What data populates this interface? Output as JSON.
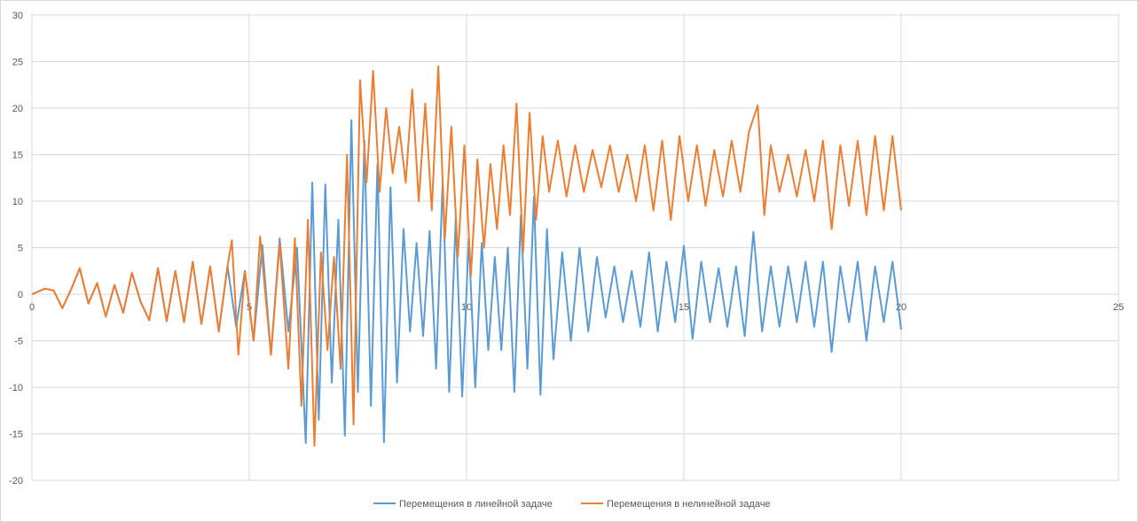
{
  "chart_data": {
    "type": "line",
    "title": "",
    "xlabel": "",
    "ylabel": "",
    "xlim": [
      0,
      25
    ],
    "ylim": [
      -20,
      30
    ],
    "x_ticks": [
      0,
      5,
      10,
      15,
      20,
      25
    ],
    "y_ticks": [
      -20,
      -15,
      -10,
      -5,
      0,
      5,
      10,
      15,
      20,
      25,
      30
    ],
    "grid": true,
    "legend_position": "bottom",
    "series": [
      {
        "name": "Перемещения в линейной задаче",
        "color": "#5b9bd5",
        "points": [
          [
            0,
            0
          ],
          [
            0.3,
            0.6
          ],
          [
            0.5,
            0.4
          ],
          [
            0.7,
            -1.5
          ],
          [
            0.9,
            0.5
          ],
          [
            1.1,
            2.8
          ],
          [
            1.3,
            -1.0
          ],
          [
            1.5,
            1.2
          ],
          [
            1.7,
            -2.4
          ],
          [
            1.9,
            1.0
          ],
          [
            2.1,
            -2.0
          ],
          [
            2.3,
            2.3
          ],
          [
            2.5,
            -0.8
          ],
          [
            2.7,
            -2.8
          ],
          [
            2.9,
            2.8
          ],
          [
            3.1,
            -2.9
          ],
          [
            3.3,
            2.5
          ],
          [
            3.5,
            -3.0
          ],
          [
            3.7,
            3.5
          ],
          [
            3.9,
            -3.2
          ],
          [
            4.1,
            3.0
          ],
          [
            4.3,
            -4.0
          ],
          [
            4.5,
            3.0
          ],
          [
            4.7,
            -3.5
          ],
          [
            4.9,
            2.5
          ],
          [
            5.1,
            -5.0
          ],
          [
            5.3,
            5.3
          ],
          [
            5.5,
            -6.5
          ],
          [
            5.7,
            6.0
          ],
          [
            5.9,
            -4.0
          ],
          [
            6.1,
            5.0
          ],
          [
            6.3,
            -16.0
          ],
          [
            6.45,
            12.0
          ],
          [
            6.6,
            -13.5
          ],
          [
            6.75,
            11.8
          ],
          [
            6.9,
            -9.5
          ],
          [
            7.05,
            8.0
          ],
          [
            7.2,
            -15.2
          ],
          [
            7.35,
            18.7
          ],
          [
            7.5,
            -10.5
          ],
          [
            7.65,
            16.5
          ],
          [
            7.8,
            -12.0
          ],
          [
            7.95,
            14.0
          ],
          [
            8.1,
            -15.9
          ],
          [
            8.25,
            11.5
          ],
          [
            8.4,
            -9.5
          ],
          [
            8.55,
            7.0
          ],
          [
            8.7,
            -4.0
          ],
          [
            8.85,
            5.5
          ],
          [
            9.0,
            -4.5
          ],
          [
            9.15,
            6.8
          ],
          [
            9.3,
            -8.0
          ],
          [
            9.45,
            12.2
          ],
          [
            9.6,
            -10.5
          ],
          [
            9.75,
            8.0
          ],
          [
            9.9,
            -11.0
          ],
          [
            10.05,
            6.0
          ],
          [
            10.2,
            -10.0
          ],
          [
            10.35,
            5.5
          ],
          [
            10.5,
            -6.0
          ],
          [
            10.65,
            4.0
          ],
          [
            10.8,
            -6.0
          ],
          [
            10.95,
            5.0
          ],
          [
            11.1,
            -10.5
          ],
          [
            11.25,
            8.5
          ],
          [
            11.4,
            -8.0
          ],
          [
            11.55,
            10.5
          ],
          [
            11.7,
            -10.8
          ],
          [
            11.85,
            7.0
          ],
          [
            12.0,
            -7.0
          ],
          [
            12.2,
            4.5
          ],
          [
            12.4,
            -5.0
          ],
          [
            12.6,
            5.0
          ],
          [
            12.8,
            -4.0
          ],
          [
            13.0,
            4.0
          ],
          [
            13.2,
            -2.5
          ],
          [
            13.4,
            3.0
          ],
          [
            13.6,
            -3.0
          ],
          [
            13.8,
            2.5
          ],
          [
            14.0,
            -3.5
          ],
          [
            14.2,
            4.5
          ],
          [
            14.4,
            -4.0
          ],
          [
            14.6,
            3.5
          ],
          [
            14.8,
            -3.0
          ],
          [
            15.0,
            5.2
          ],
          [
            15.2,
            -4.8
          ],
          [
            15.4,
            3.5
          ],
          [
            15.6,
            -3.0
          ],
          [
            15.8,
            2.8
          ],
          [
            16.0,
            -3.5
          ],
          [
            16.2,
            3.0
          ],
          [
            16.4,
            -4.5
          ],
          [
            16.6,
            6.7
          ],
          [
            16.8,
            -4.0
          ],
          [
            17.0,
            3.0
          ],
          [
            17.2,
            -3.5
          ],
          [
            17.4,
            3.0
          ],
          [
            17.6,
            -3.0
          ],
          [
            17.8,
            3.5
          ],
          [
            18.0,
            -3.5
          ],
          [
            18.2,
            3.5
          ],
          [
            18.4,
            -6.2
          ],
          [
            18.6,
            3.0
          ],
          [
            18.8,
            -3.0
          ],
          [
            19.0,
            3.5
          ],
          [
            19.2,
            -5.0
          ],
          [
            19.4,
            3.0
          ],
          [
            19.6,
            -3.0
          ],
          [
            19.8,
            3.5
          ],
          [
            20.0,
            -3.8
          ]
        ]
      },
      {
        "name": "Перемещения в нелинейной задаче",
        "color": "#ed7d31",
        "points": [
          [
            0,
            0
          ],
          [
            0.3,
            0.6
          ],
          [
            0.5,
            0.4
          ],
          [
            0.7,
            -1.5
          ],
          [
            0.9,
            0.5
          ],
          [
            1.1,
            2.8
          ],
          [
            1.3,
            -1.0
          ],
          [
            1.5,
            1.2
          ],
          [
            1.7,
            -2.4
          ],
          [
            1.9,
            1.0
          ],
          [
            2.1,
            -2.0
          ],
          [
            2.3,
            2.3
          ],
          [
            2.5,
            -0.8
          ],
          [
            2.7,
            -2.8
          ],
          [
            2.9,
            2.8
          ],
          [
            3.1,
            -2.9
          ],
          [
            3.3,
            2.5
          ],
          [
            3.5,
            -3.0
          ],
          [
            3.7,
            3.5
          ],
          [
            3.9,
            -3.2
          ],
          [
            4.1,
            3.0
          ],
          [
            4.3,
            -4.0
          ],
          [
            4.5,
            3.0
          ],
          [
            4.6,
            5.8
          ],
          [
            4.75,
            -6.5
          ],
          [
            4.9,
            2.5
          ],
          [
            5.1,
            -5.0
          ],
          [
            5.25,
            6.2
          ],
          [
            5.5,
            -6.5
          ],
          [
            5.7,
            5.5
          ],
          [
            5.9,
            -8.0
          ],
          [
            6.05,
            6.0
          ],
          [
            6.2,
            -12.0
          ],
          [
            6.35,
            8.0
          ],
          [
            6.5,
            -16.3
          ],
          [
            6.65,
            4.5
          ],
          [
            6.8,
            -6.0
          ],
          [
            6.95,
            4.0
          ],
          [
            7.1,
            -8.0
          ],
          [
            7.25,
            15.0
          ],
          [
            7.4,
            -14.0
          ],
          [
            7.55,
            23.0
          ],
          [
            7.7,
            12.0
          ],
          [
            7.85,
            24.0
          ],
          [
            8.0,
            11.0
          ],
          [
            8.15,
            20.0
          ],
          [
            8.3,
            13.0
          ],
          [
            8.45,
            18.0
          ],
          [
            8.6,
            12.0
          ],
          [
            8.75,
            22.0
          ],
          [
            8.9,
            10.0
          ],
          [
            9.05,
            20.5
          ],
          [
            9.2,
            9.0
          ],
          [
            9.35,
            24.5
          ],
          [
            9.5,
            6.0
          ],
          [
            9.65,
            18.0
          ],
          [
            9.8,
            4.0
          ],
          [
            9.95,
            16.0
          ],
          [
            10.1,
            2.0
          ],
          [
            10.25,
            14.5
          ],
          [
            10.4,
            5.0
          ],
          [
            10.55,
            14.0
          ],
          [
            10.7,
            7.0
          ],
          [
            10.85,
            16.0
          ],
          [
            11.0,
            8.5
          ],
          [
            11.15,
            20.5
          ],
          [
            11.3,
            4.5
          ],
          [
            11.45,
            19.5
          ],
          [
            11.6,
            8.0
          ],
          [
            11.75,
            17.0
          ],
          [
            11.9,
            11.0
          ],
          [
            12.1,
            16.5
          ],
          [
            12.3,
            10.5
          ],
          [
            12.5,
            16.0
          ],
          [
            12.7,
            11.0
          ],
          [
            12.9,
            15.5
          ],
          [
            13.1,
            11.5
          ],
          [
            13.3,
            16.0
          ],
          [
            13.5,
            11.0
          ],
          [
            13.7,
            15.0
          ],
          [
            13.9,
            10.0
          ],
          [
            14.1,
            16.0
          ],
          [
            14.3,
            9.0
          ],
          [
            14.5,
            16.5
          ],
          [
            14.7,
            8.0
          ],
          [
            14.9,
            17.0
          ],
          [
            15.1,
            10.0
          ],
          [
            15.3,
            16.0
          ],
          [
            15.5,
            9.5
          ],
          [
            15.7,
            15.5
          ],
          [
            15.9,
            10.5
          ],
          [
            16.1,
            16.5
          ],
          [
            16.3,
            11.0
          ],
          [
            16.5,
            17.5
          ],
          [
            16.7,
            20.3
          ],
          [
            16.85,
            8.5
          ],
          [
            17.0,
            16.0
          ],
          [
            17.2,
            11.0
          ],
          [
            17.4,
            15.0
          ],
          [
            17.6,
            10.5
          ],
          [
            17.8,
            15.5
          ],
          [
            18.0,
            10.0
          ],
          [
            18.2,
            16.5
          ],
          [
            18.4,
            7.0
          ],
          [
            18.6,
            16.0
          ],
          [
            18.8,
            9.5
          ],
          [
            19.0,
            16.5
          ],
          [
            19.2,
            8.5
          ],
          [
            19.4,
            17.0
          ],
          [
            19.6,
            9.0
          ],
          [
            19.8,
            17.0
          ],
          [
            20.0,
            9.0
          ]
        ]
      }
    ]
  }
}
